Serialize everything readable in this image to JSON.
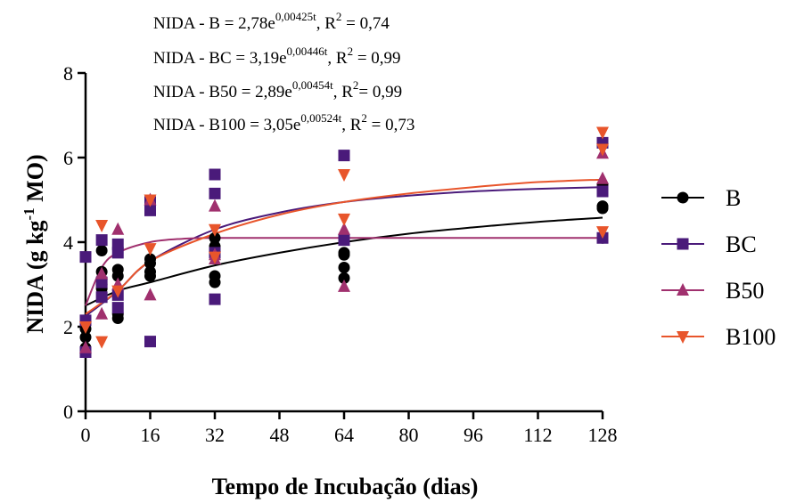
{
  "chart_data": {
    "type": "scatter",
    "xlabel": "Tempo de Incubação (dias)",
    "ylabel": {
      "prefix": "NIDA (g kg",
      "sup": "-1",
      "suffix": " MO)"
    },
    "xlim": [
      0,
      128
    ],
    "ylim": [
      0,
      8
    ],
    "xticks": [
      0,
      16,
      32,
      48,
      64,
      80,
      96,
      112,
      128
    ],
    "yticks": [
      0,
      2,
      4,
      6,
      8
    ],
    "grid": false,
    "legend_position": "right",
    "equations": [
      {
        "lhs": "NIDA - B = 2,78e",
        "exp": "0,00425t",
        "mid": ", R",
        "sup2": "2",
        "rhs": " = 0,74"
      },
      {
        "lhs": "NIDA - BC = 3,19e",
        "exp": "0,00446t",
        "mid": ", R",
        "sup2": "2",
        "rhs": " = 0,99"
      },
      {
        "lhs": "NIDA - B50 = 2,89e",
        "exp": "0,00454t",
        "mid": ", R",
        "sup2": "2",
        "rhs": "= 0,99"
      },
      {
        "lhs": "NIDA - B100  = 3,05e",
        "exp": "0,00524t",
        "mid": ", R",
        "sup2": "2",
        "rhs": " = 0,73"
      }
    ],
    "series": [
      {
        "name": "B",
        "color": "#000000",
        "marker": "circle",
        "points": [
          [
            0,
            1.95
          ],
          [
            0,
            1.75
          ],
          [
            0,
            1.5
          ],
          [
            4,
            3.3
          ],
          [
            4,
            3.0
          ],
          [
            4,
            3.8
          ],
          [
            4,
            2.9
          ],
          [
            8,
            3.35
          ],
          [
            8,
            3.2
          ],
          [
            8,
            2.3
          ],
          [
            8,
            2.2
          ],
          [
            16,
            3.6
          ],
          [
            16,
            3.5
          ],
          [
            16,
            3.3
          ],
          [
            16,
            3.2
          ],
          [
            32,
            4.1
          ],
          [
            32,
            3.9
          ],
          [
            32,
            3.2
          ],
          [
            32,
            3.05
          ],
          [
            64,
            3.75
          ],
          [
            64,
            3.7
          ],
          [
            64,
            3.4
          ],
          [
            64,
            3.15
          ],
          [
            128,
            5.35
          ],
          [
            128,
            4.85
          ],
          [
            128,
            4.8
          ],
          [
            128,
            4.1
          ]
        ],
        "curve": [
          [
            0,
            2.5
          ],
          [
            8,
            2.85
          ],
          [
            16,
            3.05
          ],
          [
            32,
            3.45
          ],
          [
            48,
            3.75
          ],
          [
            64,
            4.0
          ],
          [
            80,
            4.2
          ],
          [
            96,
            4.35
          ],
          [
            112,
            4.48
          ],
          [
            128,
            4.58
          ]
        ]
      },
      {
        "name": "BC",
        "color": "#4a1a7a",
        "marker": "square",
        "points": [
          [
            0,
            3.65
          ],
          [
            0,
            2.15
          ],
          [
            0,
            1.4
          ],
          [
            4,
            4.05
          ],
          [
            4,
            3.05
          ],
          [
            4,
            2.7
          ],
          [
            8,
            3.95
          ],
          [
            8,
            3.75
          ],
          [
            8,
            2.75
          ],
          [
            8,
            2.45
          ],
          [
            16,
            4.95
          ],
          [
            16,
            4.75
          ],
          [
            16,
            1.65
          ],
          [
            32,
            5.6
          ],
          [
            32,
            5.15
          ],
          [
            32,
            3.75
          ],
          [
            32,
            2.65
          ],
          [
            64,
            6.05
          ],
          [
            64,
            4.05
          ],
          [
            128,
            6.35
          ],
          [
            128,
            5.2
          ],
          [
            128,
            4.1
          ]
        ],
        "curve": [
          [
            0,
            2.25
          ],
          [
            8,
            2.85
          ],
          [
            16,
            3.55
          ],
          [
            32,
            4.3
          ],
          [
            48,
            4.7
          ],
          [
            64,
            4.95
          ],
          [
            80,
            5.1
          ],
          [
            96,
            5.2
          ],
          [
            112,
            5.26
          ],
          [
            128,
            5.3
          ]
        ]
      },
      {
        "name": "B50",
        "color": "#a0306e",
        "marker": "triangle-up",
        "points": [
          [
            0,
            1.5
          ],
          [
            4,
            2.3
          ],
          [
            4,
            3.25
          ],
          [
            8,
            4.3
          ],
          [
            8,
            3.0
          ],
          [
            16,
            5.0
          ],
          [
            16,
            2.75
          ],
          [
            32,
            4.85
          ],
          [
            32,
            3.6
          ],
          [
            32,
            3.7
          ],
          [
            64,
            4.3
          ],
          [
            64,
            2.95
          ],
          [
            128,
            6.1
          ],
          [
            128,
            5.5
          ]
        ],
        "curve": [
          [
            0,
            2.5
          ],
          [
            4,
            3.4
          ],
          [
            8,
            3.75
          ],
          [
            16,
            4.0
          ],
          [
            24,
            4.08
          ],
          [
            32,
            4.1
          ],
          [
            48,
            4.1
          ],
          [
            64,
            4.1
          ],
          [
            96,
            4.1
          ],
          [
            128,
            4.1
          ]
        ]
      },
      {
        "name": "B100",
        "color": "#e8552b",
        "marker": "triangle-down",
        "points": [
          [
            0,
            2.0
          ],
          [
            4,
            4.4
          ],
          [
            4,
            1.65
          ],
          [
            8,
            2.85
          ],
          [
            16,
            5.0
          ],
          [
            16,
            3.85
          ],
          [
            32,
            4.3
          ],
          [
            32,
            3.65
          ],
          [
            64,
            5.6
          ],
          [
            64,
            4.55
          ],
          [
            128,
            6.6
          ],
          [
            128,
            6.2
          ],
          [
            128,
            4.25
          ]
        ],
        "curve": [
          [
            0,
            2.3
          ],
          [
            8,
            2.85
          ],
          [
            16,
            3.55
          ],
          [
            32,
            4.2
          ],
          [
            48,
            4.65
          ],
          [
            64,
            4.95
          ],
          [
            80,
            5.15
          ],
          [
            96,
            5.3
          ],
          [
            112,
            5.42
          ],
          [
            128,
            5.48
          ]
        ]
      }
    ]
  }
}
